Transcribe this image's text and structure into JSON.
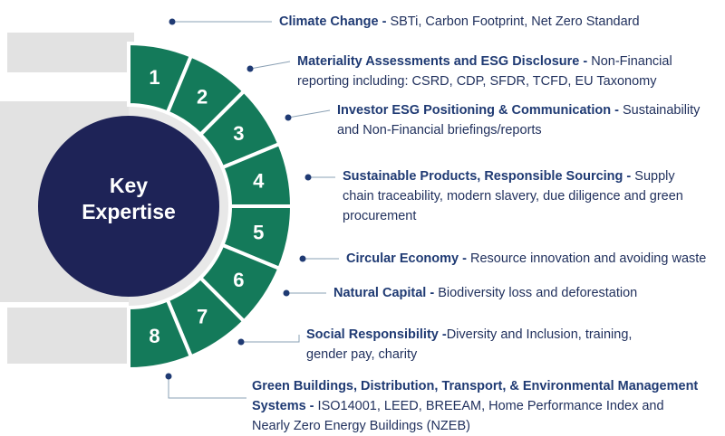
{
  "center": {
    "line1": "Key",
    "line2": "Expertise"
  },
  "colors": {
    "segment": "#147a5a",
    "segment_stroke": "#ffffff",
    "center_circle": "#1e2357",
    "gray_band": "#e2e2e2",
    "ring_gray": "#e8e8e8",
    "text_title": "#1f3a73",
    "text_body": "#1f2f5c",
    "dot": "#1f3a73",
    "leader": "#8aa0b4"
  },
  "items": [
    {
      "number": "1",
      "title": "Climate Change -",
      "desc": " SBTi, Carbon Footprint, Net Zero Standard"
    },
    {
      "number": "2",
      "title": "Materiality Assessments and ESG Disclosure -",
      "desc": " Non-Financial reporting including: CSRD, CDP, SFDR, TCFD, EU Taxonomy"
    },
    {
      "number": "3",
      "title": "Investor ESG Positioning & Communication -",
      "desc": " Sustainability and Non-Financial briefings/reports"
    },
    {
      "number": "4",
      "title": "Sustainable Products, Responsible Sourcing -",
      "desc": " Supply chain traceability, modern slavery, due diligence and green procurement"
    },
    {
      "number": "5",
      "title": "Circular Economy -",
      "desc": " Resource innovation and avoiding waste"
    },
    {
      "number": "6",
      "title": "Natural Capital -",
      "desc": " Biodiversity loss and deforestation"
    },
    {
      "number": "7",
      "title": "Social Responsibility -",
      "desc": "Diversity and Inclusion, training, gender pay, charity"
    },
    {
      "number": "8",
      "title": "Green Buildings, Distribution, Transport, & Environmental Management Systems -",
      "desc": " ISO14001, LEED, BREEAM, Home Performance Index and Nearly Zero Energy Buildings (NZEB)"
    }
  ]
}
